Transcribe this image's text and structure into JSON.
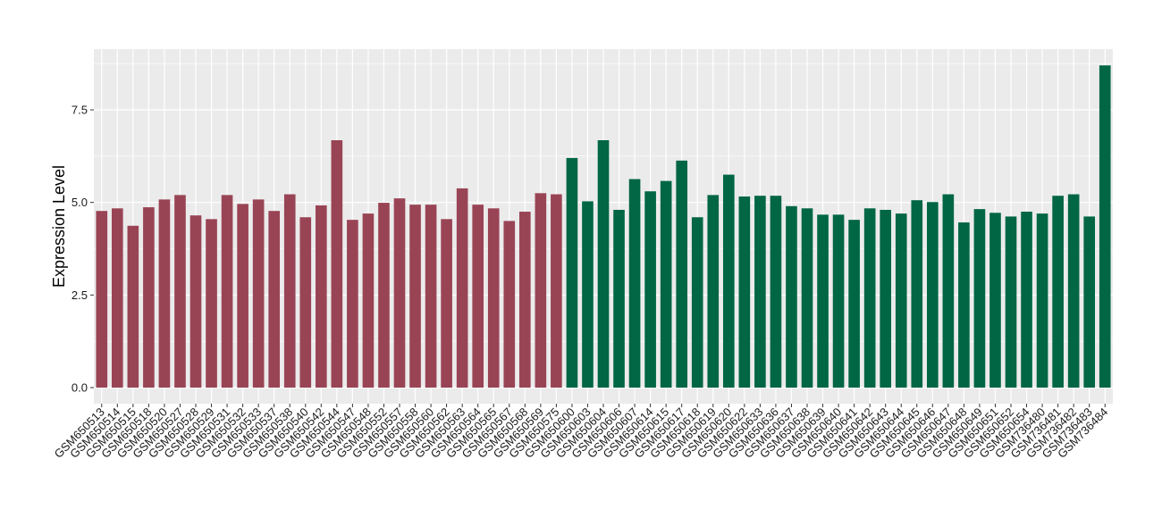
{
  "chart_data": {
    "type": "bar",
    "title": "",
    "xlabel": "",
    "ylabel": "Expression Level",
    "ylim": [
      0,
      9.1
    ],
    "yticks": [
      0.0,
      2.5,
      5.0,
      7.5
    ],
    "ytick_labels": [
      "0.0",
      "2.5",
      "5.0",
      "7.5"
    ],
    "grid": true,
    "legend": "none",
    "panel_background": "#EBEBEB",
    "grid_color": "#FFFFFF",
    "group_colors": {
      "group1": "#994455",
      "group2": "#006644"
    },
    "categories": [
      "GSM650513",
      "GSM650514",
      "GSM650515",
      "GSM650518",
      "GSM650520",
      "GSM650527",
      "GSM650528",
      "GSM650529",
      "GSM650531",
      "GSM650532",
      "GSM650533",
      "GSM650537",
      "GSM650538",
      "GSM650540",
      "GSM650542",
      "GSM650544",
      "GSM650547",
      "GSM650548",
      "GSM650552",
      "GSM650557",
      "GSM650558",
      "GSM650560",
      "GSM650562",
      "GSM650563",
      "GSM650564",
      "GSM650565",
      "GSM650567",
      "GSM650568",
      "GSM650569",
      "GSM650575",
      "GSM650600",
      "GSM650603",
      "GSM650604",
      "GSM650606",
      "GSM650607",
      "GSM650614",
      "GSM650615",
      "GSM650617",
      "GSM650618",
      "GSM650619",
      "GSM650620",
      "GSM650622",
      "GSM650633",
      "GSM650636",
      "GSM650637",
      "GSM650638",
      "GSM650639",
      "GSM650640",
      "GSM650641",
      "GSM650642",
      "GSM650643",
      "GSM650644",
      "GSM650645",
      "GSM650646",
      "GSM650647",
      "GSM650648",
      "GSM650649",
      "GSM650651",
      "GSM650652",
      "GSM650654",
      "GSM736480",
      "GSM736481",
      "GSM736482",
      "GSM736483",
      "GSM736484"
    ],
    "values": [
      4.77,
      4.84,
      4.37,
      4.87,
      5.08,
      5.2,
      4.65,
      4.55,
      5.2,
      4.96,
      5.08,
      4.77,
      5.22,
      4.6,
      4.92,
      6.68,
      4.53,
      4.7,
      4.99,
      5.11,
      4.94,
      4.94,
      4.55,
      5.38,
      4.94,
      4.84,
      4.5,
      4.75,
      5.25,
      5.22,
      6.2,
      5.03,
      6.68,
      4.8,
      5.63,
      5.3,
      5.58,
      6.13,
      4.6,
      5.2,
      5.75,
      5.16,
      5.18,
      5.18,
      4.9,
      4.84,
      4.67,
      4.67,
      4.53,
      4.84,
      4.8,
      4.7,
      5.06,
      5.01,
      5.22,
      4.46,
      4.82,
      4.72,
      4.62,
      4.75,
      4.7,
      5.18,
      5.22,
      4.62,
      8.7
    ],
    "groups": [
      "group1",
      "group1",
      "group1",
      "group1",
      "group1",
      "group1",
      "group1",
      "group1",
      "group1",
      "group1",
      "group1",
      "group1",
      "group1",
      "group1",
      "group1",
      "group1",
      "group1",
      "group1",
      "group1",
      "group1",
      "group1",
      "group1",
      "group1",
      "group1",
      "group1",
      "group1",
      "group1",
      "group1",
      "group1",
      "group1",
      "group2",
      "group2",
      "group2",
      "group2",
      "group2",
      "group2",
      "group2",
      "group2",
      "group2",
      "group2",
      "group2",
      "group2",
      "group2",
      "group2",
      "group2",
      "group2",
      "group2",
      "group2",
      "group2",
      "group2",
      "group2",
      "group2",
      "group2",
      "group2",
      "group2",
      "group2",
      "group2",
      "group2",
      "group2",
      "group2",
      "group2",
      "group2",
      "group2",
      "group2",
      "group2"
    ]
  }
}
